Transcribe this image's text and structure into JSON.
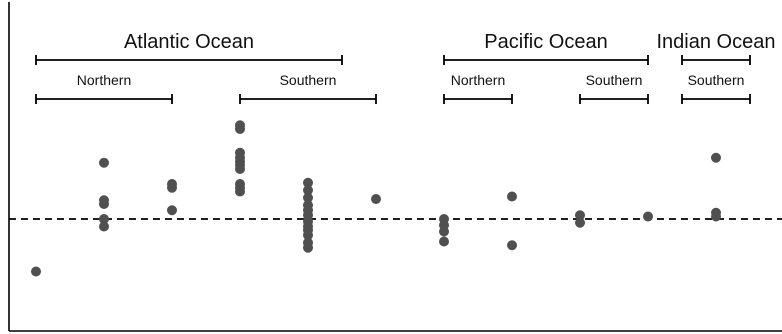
{
  "chart_data": {
    "type": "scatter",
    "title": "",
    "xlabel": "",
    "ylabel": "",
    "grid": false,
    "reference_line": {
      "y": 0,
      "style": "dashed"
    },
    "ylim": [
      -1.05,
      1.6
    ],
    "groups": [
      {
        "ocean": "Atlantic Ocean",
        "span": [
          0,
          9
        ]
      },
      {
        "ocean": "Pacific Ocean",
        "span": [
          12,
          18
        ]
      },
      {
        "ocean": "Indian Ocean",
        "span": [
          19,
          21
        ]
      }
    ],
    "subgroups": [
      {
        "label": "Northern",
        "span": [
          0,
          4
        ]
      },
      {
        "label": "Southern",
        "span": [
          6,
          10
        ]
      },
      {
        "label": "Northern",
        "span": [
          12,
          14
        ]
      },
      {
        "label": "Southern",
        "span": [
          16,
          18
        ]
      },
      {
        "label": "Southern",
        "span": [
          19,
          21
        ]
      }
    ],
    "points": [
      {
        "x": 0,
        "y": -0.42
      },
      {
        "x": 2,
        "y": 0.45
      },
      {
        "x": 2,
        "y": 0.15
      },
      {
        "x": 2,
        "y": 0.12
      },
      {
        "x": 2,
        "y": 0.0
      },
      {
        "x": 2,
        "y": -0.06
      },
      {
        "x": 4,
        "y": 0.28
      },
      {
        "x": 4,
        "y": 0.25
      },
      {
        "x": 4,
        "y": 0.07
      },
      {
        "x": 6,
        "y": 0.75
      },
      {
        "x": 6,
        "y": 0.72
      },
      {
        "x": 6,
        "y": 0.53
      },
      {
        "x": 6,
        "y": 0.49
      },
      {
        "x": 6,
        "y": 0.46
      },
      {
        "x": 6,
        "y": 0.43
      },
      {
        "x": 6,
        "y": 0.4
      },
      {
        "x": 6,
        "y": 0.28
      },
      {
        "x": 6,
        "y": 0.25
      },
      {
        "x": 6,
        "y": 0.22
      },
      {
        "x": 8,
        "y": 0.29
      },
      {
        "x": 8,
        "y": 0.23
      },
      {
        "x": 8,
        "y": 0.17
      },
      {
        "x": 8,
        "y": 0.11
      },
      {
        "x": 8,
        "y": 0.07
      },
      {
        "x": 8,
        "y": 0.03
      },
      {
        "x": 8,
        "y": -0.02
      },
      {
        "x": 8,
        "y": -0.06
      },
      {
        "x": 8,
        "y": -0.09
      },
      {
        "x": 8,
        "y": -0.13
      },
      {
        "x": 8,
        "y": -0.19
      },
      {
        "x": 8,
        "y": -0.23
      },
      {
        "x": 10,
        "y": 0.16
      },
      {
        "x": 12,
        "y": 0.0
      },
      {
        "x": 12,
        "y": -0.05
      },
      {
        "x": 12,
        "y": -0.1
      },
      {
        "x": 12,
        "y": -0.18
      },
      {
        "x": 14,
        "y": 0.18
      },
      {
        "x": 14,
        "y": -0.21
      },
      {
        "x": 16,
        "y": 0.03
      },
      {
        "x": 16,
        "y": -0.03
      },
      {
        "x": 18,
        "y": 0.02
      },
      {
        "x": 20,
        "y": 0.49
      },
      {
        "x": 20,
        "y": 0.05
      },
      {
        "x": 20,
        "y": 0.02
      }
    ]
  }
}
